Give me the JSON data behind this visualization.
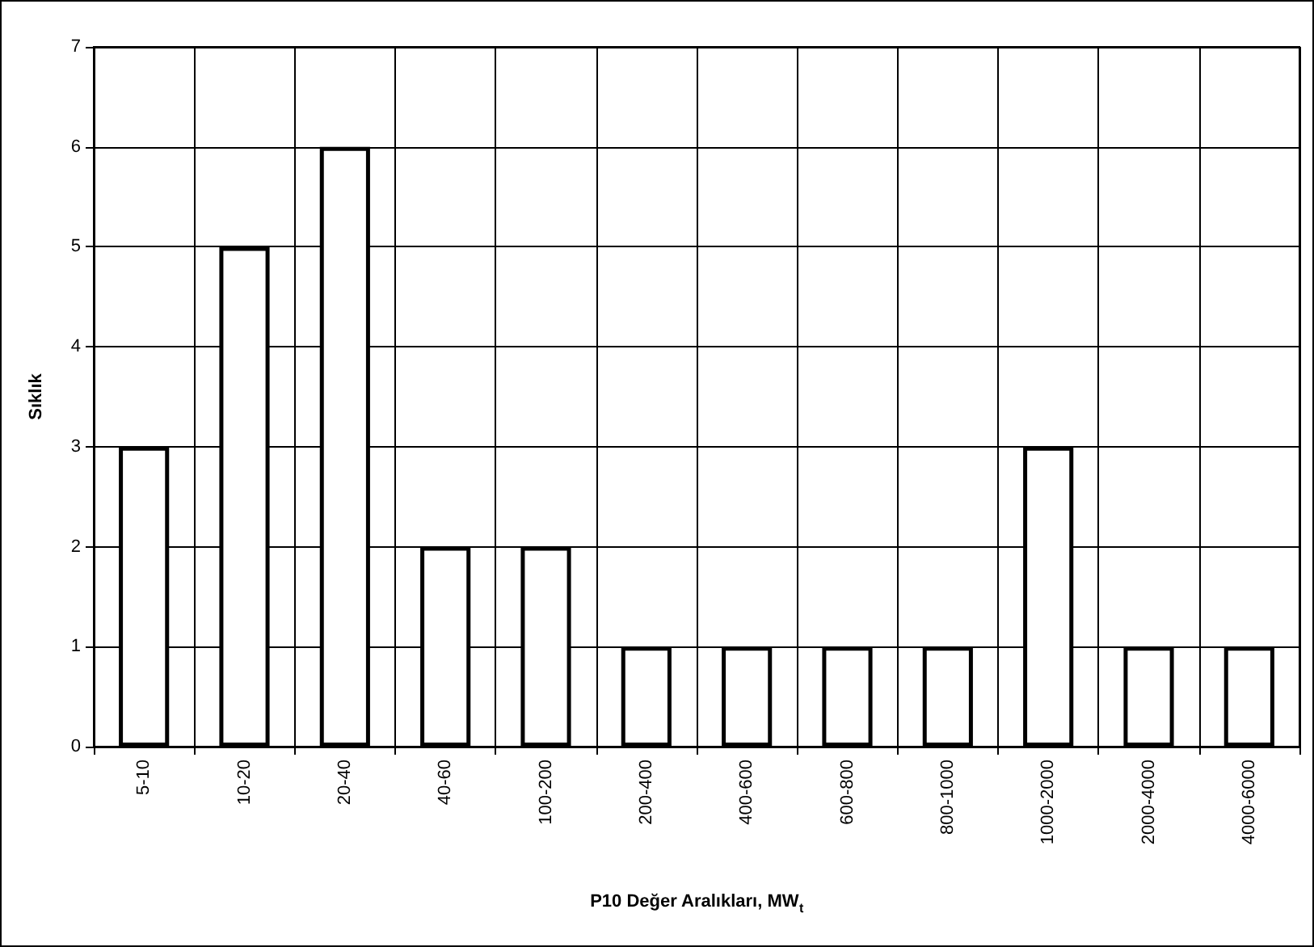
{
  "chart_data": {
    "type": "bar",
    "xlabel": "P10 Değer Aralıkları, MW$_{t}$",
    "ylabel": "Sıklık",
    "categories": [
      "5-10",
      "10-20",
      "20-40",
      "40-60",
      "100-200",
      "200-400",
      "400-600",
      "600-800",
      "800-1000",
      "1000-2000",
      "2000-4000",
      "4000-6000"
    ],
    "values": [
      3,
      5,
      6,
      2,
      2,
      1,
      1,
      1,
      1,
      3,
      1,
      1
    ],
    "color": "#ffffff",
    "ylim": [
      0,
      7
    ],
    "yticks": [
      0,
      1,
      2,
      3,
      4,
      5,
      6,
      7
    ],
    "grid": true
  }
}
